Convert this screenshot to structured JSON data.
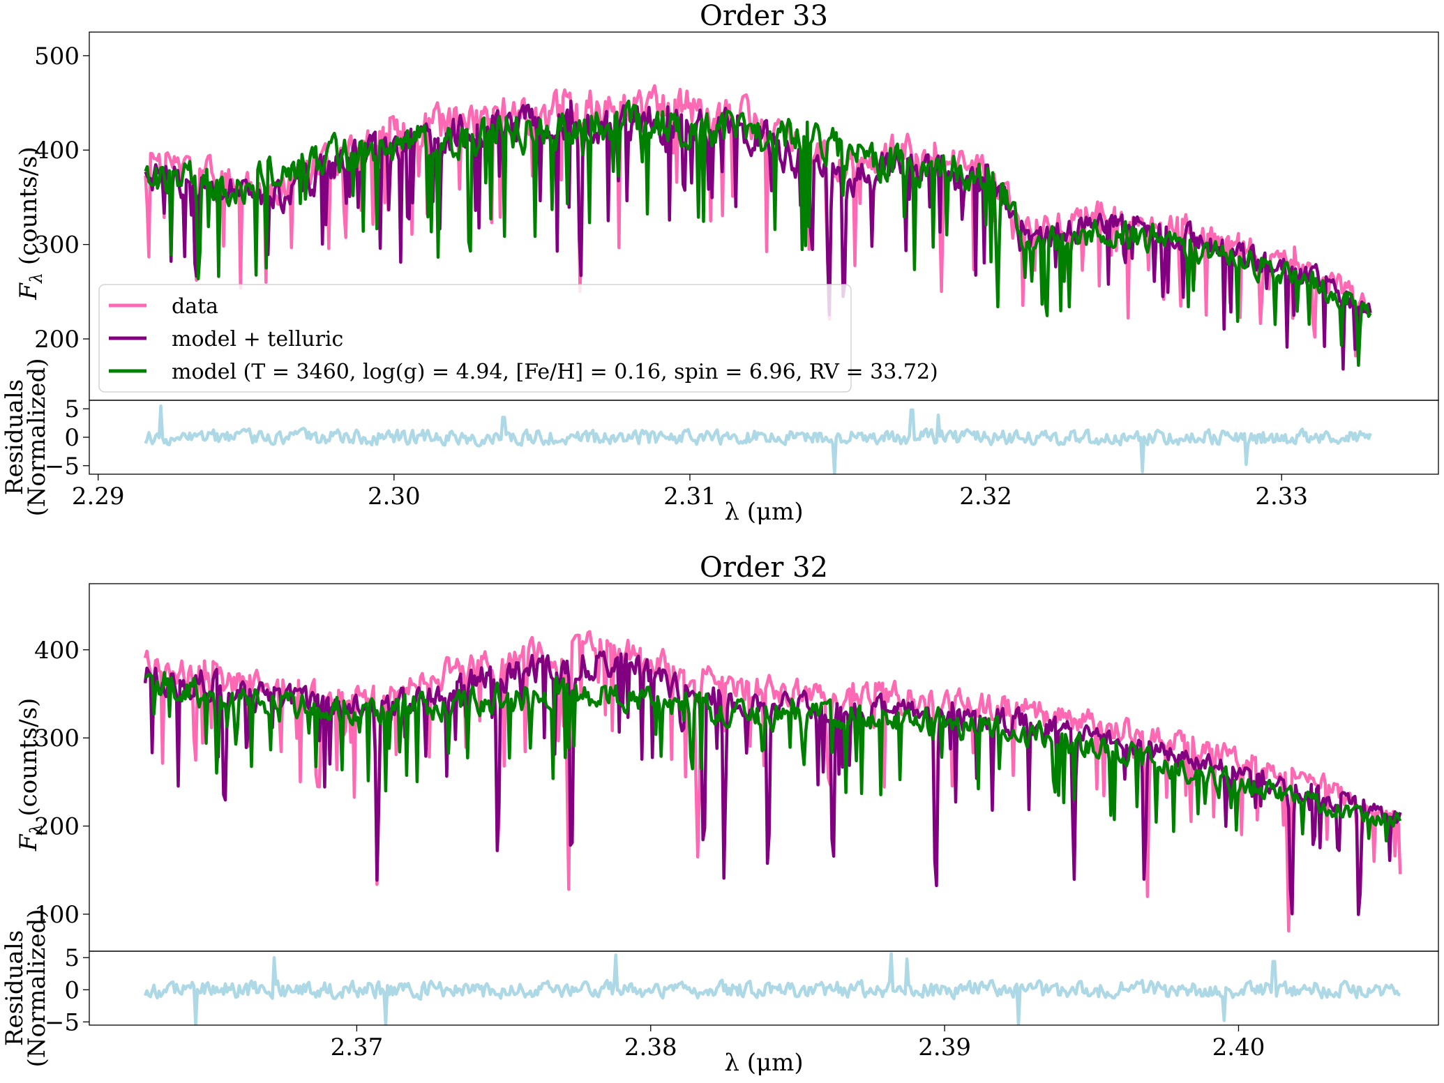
{
  "figure": {
    "legend": {
      "entries": [
        {
          "label": "data",
          "color": "#ff69b4"
        },
        {
          "label": "model + telluric",
          "color": "#800080"
        },
        {
          "label": "model (T = 3460, log(g) = 4.94, [Fe/H] = 0.16, spin = 6.96, RV = 33.72)",
          "color": "#008000"
        }
      ]
    }
  },
  "chart_data": [
    {
      "type": "line",
      "title": "Order 33",
      "ylabel": "F_λ (counts/s)",
      "ylabel_sub": "λ",
      "xlabel": "λ (μm)",
      "xlim": [
        2.2897,
        2.3353
      ],
      "ylim": [
        135,
        525
      ],
      "xticks": [
        2.29,
        2.3,
        2.31,
        2.32,
        2.33
      ],
      "xtick_labels": [
        "2.29",
        "2.30",
        "2.31",
        "2.32",
        "2.33"
      ],
      "yticks": [
        200,
        300,
        400,
        500
      ],
      "ytick_labels": [
        "200",
        "300",
        "400",
        "500"
      ],
      "grid": false,
      "legend_position": "lower-left",
      "series": [
        {
          "name": "data",
          "color": "#ff69b4",
          "x_range": [
            2.2916,
            2.3329
          ],
          "anchors_x": [
            2.2916,
            2.2935,
            2.296,
            2.298,
            2.3,
            2.302,
            2.304,
            2.306,
            2.308,
            2.31,
            2.3125,
            2.3145,
            2.3155,
            2.317,
            2.319,
            2.3203,
            2.3215,
            2.324,
            2.3265,
            2.329,
            2.331,
            2.3329
          ],
          "anchors_y": [
            385,
            375,
            360,
            395,
            415,
            430,
            440,
            445,
            445,
            445,
            425,
            390,
            385,
            400,
            385,
            370,
            315,
            330,
            320,
            295,
            275,
            235
          ],
          "minima": [
            [
              2.2933,
              245
            ],
            [
              2.3063,
              237
            ],
            [
              2.3147,
              208
            ],
            [
              2.3185,
              250
            ],
            [
              2.326,
              235
            ],
            [
              2.3293,
              215
            ],
            [
              2.3325,
              182
            ]
          ]
        },
        {
          "name": "model + telluric",
          "color": "#800080",
          "x_range": [
            2.2916,
            2.333
          ],
          "anchors_x": [
            2.2916,
            2.2935,
            2.296,
            2.298,
            2.3,
            2.302,
            2.304,
            2.306,
            2.308,
            2.31,
            2.3125,
            2.3145,
            2.3155,
            2.317,
            2.319,
            2.3203,
            2.3215,
            2.324,
            2.3265,
            2.329,
            2.331,
            2.333
          ],
          "anchors_y": [
            375,
            365,
            350,
            385,
            400,
            415,
            425,
            430,
            430,
            430,
            410,
            375,
            372,
            385,
            372,
            360,
            305,
            320,
            310,
            285,
            265,
            230
          ],
          "minima": [
            [
              2.2933,
              245
            ],
            [
              2.3063,
              250
            ],
            [
              2.3147,
              215
            ],
            [
              2.3152,
              220
            ],
            [
              2.326,
              240
            ],
            [
              2.3325,
              185
            ]
          ]
        },
        {
          "name": "model (T = 3460, log(g) = 4.94, [Fe/H] = 0.16, spin = 6.96, RV = 33.72)",
          "color": "#008000",
          "x_range": [
            2.2916,
            2.333
          ],
          "anchors_x": [
            2.2916,
            2.2933,
            2.2945,
            2.297,
            2.3,
            2.303,
            2.306,
            2.309,
            2.312,
            2.3145,
            2.317,
            2.319,
            2.3203,
            2.3215,
            2.324,
            2.3265,
            2.329,
            2.331,
            2.333
          ],
          "anchors_y": [
            368,
            375,
            360,
            385,
            405,
            415,
            425,
            425,
            418,
            405,
            385,
            380,
            370,
            295,
            315,
            300,
            280,
            262,
            230
          ],
          "minima": [
            [
              2.2934,
              255
            ],
            [
              2.3204,
              232
            ],
            [
              2.3326,
              172
            ]
          ]
        }
      ],
      "residuals": {
        "ylabel_line1": "Residuals",
        "ylabel_line2": "(Normalized)",
        "ylim": [
          -6.5,
          6.5
        ],
        "yticks": [
          -5,
          0,
          5
        ],
        "ytick_labels": [
          "−5",
          "0",
          "5"
        ],
        "color": "#add8e6",
        "x_range": [
          2.2916,
          2.333
        ],
        "spikes": [
          [
            2.2921,
            5.5
          ],
          [
            2.3037,
            3.5
          ],
          [
            2.3175,
            4.8
          ],
          [
            2.3184,
            3.9
          ],
          [
            2.3149,
            -6.3
          ],
          [
            2.3253,
            -6.1
          ],
          [
            2.3288,
            -4.8
          ]
        ]
      }
    },
    {
      "type": "line",
      "title": "Order 32",
      "ylabel": "F_λ (counts/s)",
      "ylabel_sub": "λ",
      "xlabel": "λ (μm)",
      "xlim": [
        2.3609,
        2.4068
      ],
      "ylim": [
        58,
        475
      ],
      "xticks": [
        2.37,
        2.38,
        2.39,
        2.4
      ],
      "xtick_labels": [
        "2.37",
        "2.38",
        "2.39",
        "2.40"
      ],
      "yticks": [
        100,
        200,
        300,
        400
      ],
      "ytick_labels": [
        "100",
        "200",
        "300",
        "400"
      ],
      "grid": false,
      "series": [
        {
          "name": "data",
          "color": "#ff69b4",
          "x_range": [
            2.3628,
            2.4055
          ],
          "anchors_x": [
            2.3628,
            2.365,
            2.367,
            2.369,
            2.371,
            2.373,
            2.375,
            2.377,
            2.379,
            2.381,
            2.383,
            2.386,
            2.389,
            2.392,
            2.395,
            2.398,
            2.401,
            2.403,
            2.4055
          ],
          "anchors_y": [
            380,
            370,
            355,
            345,
            345,
            370,
            385,
            395,
            405,
            370,
            360,
            345,
            345,
            335,
            315,
            295,
            265,
            245,
            205
          ],
          "minima": [
            [
              2.3645,
              265
            ],
            [
              2.3687,
              215
            ],
            [
              2.3707,
              125
            ],
            [
              2.3748,
              145
            ],
            [
              2.3772,
              118
            ],
            [
              2.3816,
              165
            ],
            [
              2.3897,
              102
            ],
            [
              2.3969,
              120
            ],
            [
              2.4017,
              80
            ],
            [
              2.4041,
              80
            ]
          ]
        },
        {
          "name": "model + telluric",
          "color": "#800080",
          "x_range": [
            2.3628,
            2.4055
          ],
          "anchors_x": [
            2.3628,
            2.365,
            2.367,
            2.369,
            2.371,
            2.373,
            2.375,
            2.377,
            2.379,
            2.381,
            2.383,
            2.386,
            2.389,
            2.392,
            2.395,
            2.398,
            2.401,
            2.403,
            2.4055
          ],
          "anchors_y": [
            372,
            360,
            345,
            335,
            335,
            355,
            370,
            380,
            390,
            355,
            345,
            330,
            330,
            320,
            300,
            280,
            250,
            232,
            208
          ],
          "minima": [
            [
              2.3655,
              200
            ],
            [
              2.3707,
              130
            ],
            [
              2.3748,
              148
            ],
            [
              2.3773,
              120
            ],
            [
              2.3818,
              160
            ],
            [
              2.3825,
              135
            ],
            [
              2.384,
              140
            ],
            [
              2.3862,
              130
            ],
            [
              2.3897,
              98
            ],
            [
              2.3944,
              135
            ],
            [
              2.3968,
              125
            ],
            [
              2.4018,
              78
            ],
            [
              2.4041,
              78
            ]
          ]
        },
        {
          "name": "model (T = 3460, log(g) = 4.94, [Fe/H] = 0.16, spin = 6.96, RV = 33.72)",
          "color": "#008000",
          "x_range": [
            2.3628,
            2.4055
          ],
          "anchors_x": [
            2.3628,
            2.365,
            2.368,
            2.371,
            2.374,
            2.377,
            2.38,
            2.383,
            2.386,
            2.389,
            2.392,
            2.395,
            2.398,
            2.401,
            2.403,
            2.4055
          ],
          "anchors_y": [
            370,
            345,
            335,
            332,
            342,
            350,
            345,
            325,
            330,
            320,
            310,
            290,
            265,
            240,
            222,
            205
          ],
          "minima": [
            [
              2.3659,
              290
            ],
            [
              2.3814,
              255
            ],
            [
              2.3852,
              265
            ]
          ]
        }
      ],
      "residuals": {
        "ylabel_line1": "Residuals",
        "ylabel_line2": "(Normalized)",
        "ylim": [
          -5.5,
          6.0
        ],
        "yticks": [
          -5,
          0,
          5
        ],
        "ytick_labels": [
          "−5",
          "0",
          "5"
        ],
        "color": "#add8e6",
        "x_range": [
          2.3628,
          2.4055
        ],
        "spikes": [
          [
            2.3645,
            -5.5
          ],
          [
            2.3672,
            5.0
          ],
          [
            2.371,
            -5.4
          ],
          [
            2.3788,
            5.4
          ],
          [
            2.3882,
            5.6
          ],
          [
            2.3887,
            4.8
          ],
          [
            2.3925,
            -5.5
          ],
          [
            2.3995,
            -4.8
          ],
          [
            2.4012,
            4.4
          ]
        ]
      }
    }
  ]
}
